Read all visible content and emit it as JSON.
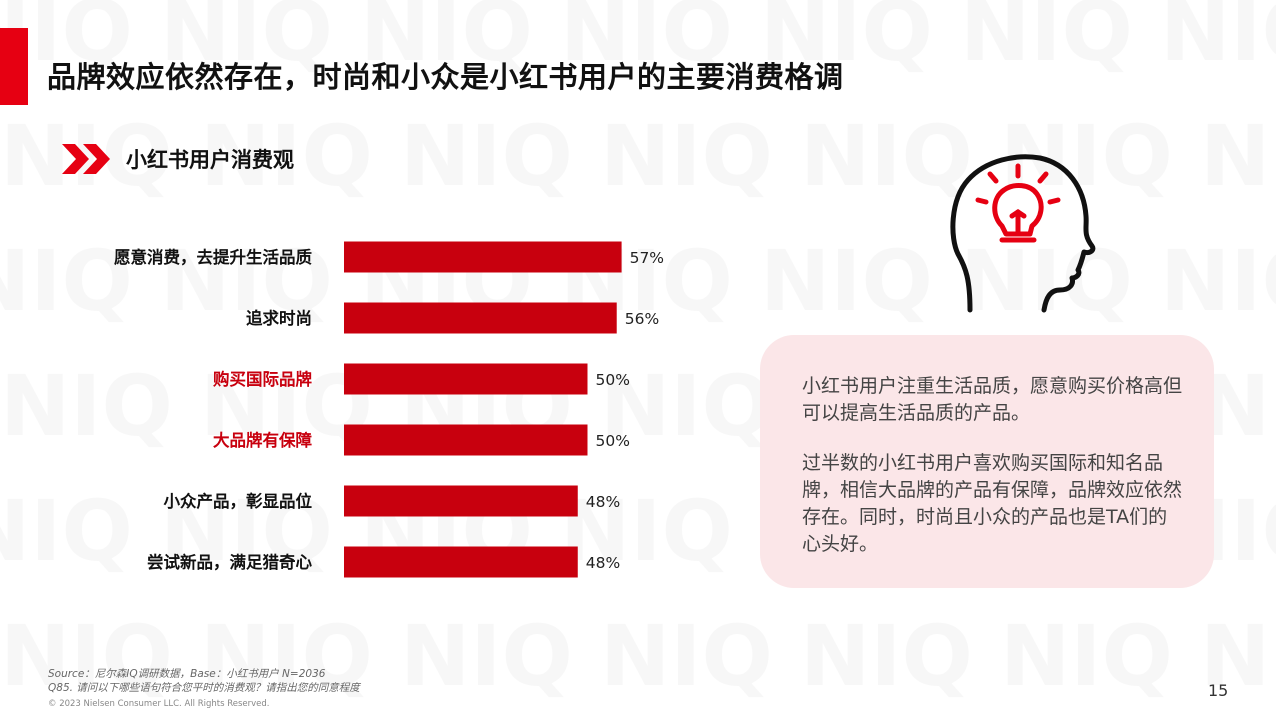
{
  "header": {
    "title": "品牌效应依然存在，时尚和小众是小红书用户的主要消费格调",
    "accent_color": "#e60012"
  },
  "section": {
    "title": "小红书用户消费观",
    "icon": "double-chevron-icon"
  },
  "chart_data": {
    "type": "bar",
    "orientation": "horizontal",
    "categories": [
      "愿意消费，去提升生活品质",
      "追求时尚",
      "购买国际品牌",
      "大品牌有保障",
      "小众产品，彰显品位",
      "尝试新品，满足猎奇心"
    ],
    "values": [
      57,
      56,
      50,
      50,
      48,
      48
    ],
    "labels": [
      "57%",
      "56%",
      "50%",
      "50%",
      "48%",
      "48%"
    ],
    "highlighted": [
      false,
      false,
      true,
      true,
      false,
      false
    ],
    "unit": "%",
    "bar_color": "#c8000e",
    "highlight_label_color": "#c8000e",
    "label_color": "#111111",
    "xlim": [
      0,
      100
    ],
    "title": "",
    "xlabel": "",
    "ylabel": "",
    "grid": false
  },
  "illustration": {
    "icon": "head-lightbulb-icon",
    "colors": {
      "outline": "#111111",
      "bulb": "#e60012"
    }
  },
  "callout": {
    "paragraph1": "小红书用户注重生活品质，愿意购买价格高但可以提高生活品质的产品。",
    "paragraph2": "过半数的小红书用户喜欢购买国际和知名品牌，相信大品牌的产品有保障，品牌效应依然存在。同时，时尚且小众的产品也是TA们的心头好。",
    "background": "#fbe6e8"
  },
  "footer": {
    "source_line1": "Source：尼尔森IQ调研数据，Base：小红书用户 N=2036",
    "source_line2": "Q85. 请问以下哪些语句符合您平时的消费观？请指出您的同意程度",
    "copyright": "© 2023 Nielsen Consumer LLC. All Rights Reserved.",
    "page_number": "15"
  },
  "watermark": {
    "text": "NIQ"
  }
}
